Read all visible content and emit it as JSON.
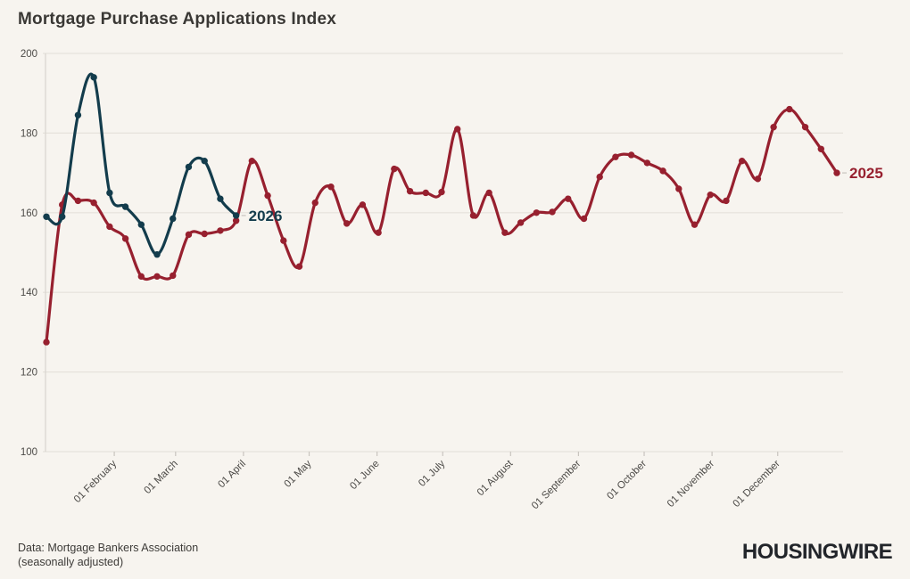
{
  "title": "Mortgage Purchase Applications Index",
  "footer": {
    "line1": "Data: Mortgage Bankers Association",
    "line2": "(seasonally adjusted)",
    "logo": "HOUSINGWIRE"
  },
  "colors": {
    "background": "#f7f4ef",
    "gridline": "#e6e2dc",
    "axis": "#d8d4ce",
    "tick": "#c9c5bf",
    "tick_text": "#4c4a47",
    "series_2025": "#97202f",
    "series_2026": "#133c4c"
  },
  "chart_data": {
    "type": "line",
    "title": "Mortgage Purchase Applications Index",
    "xlabel": "",
    "ylabel": "",
    "ylim": [
      100,
      200
    ],
    "yticks": [
      100,
      120,
      140,
      160,
      180,
      200
    ],
    "grid": "horizontal",
    "legend_position": "line-end-labels",
    "total_days_span": 361,
    "months": [
      {
        "label": "01 February",
        "day": 31
      },
      {
        "label": "01 March",
        "day": 59
      },
      {
        "label": "01 April",
        "day": 90
      },
      {
        "label": "01 May",
        "day": 120
      },
      {
        "label": "01 June",
        "day": 151
      },
      {
        "label": "01 July",
        "day": 181
      },
      {
        "label": "01 August",
        "day": 212
      },
      {
        "label": "01 September",
        "day": 243
      },
      {
        "label": "01 October",
        "day": 273
      },
      {
        "label": "01 November",
        "day": 304
      },
      {
        "label": "01 December",
        "day": 334
      }
    ],
    "series": [
      {
        "name": "2025",
        "color": "#97202f",
        "values": [
          127.5,
          162,
          163,
          162.5,
          156.5,
          153.5,
          144,
          144,
          144.2,
          154.5,
          154.7,
          155.5,
          158,
          173,
          164.3,
          153,
          146.5,
          162.5,
          166.5,
          157.3,
          162,
          155,
          171,
          165.4,
          165,
          165.2,
          181,
          159.3,
          165,
          155,
          157.5,
          160,
          160.2,
          163.5,
          158.5,
          169,
          174,
          174.5,
          172.5,
          170.5,
          166,
          157,
          164.5,
          163,
          173,
          168.5,
          181.5,
          186,
          181.5,
          176,
          170
        ]
      },
      {
        "name": "2026",
        "color": "#133c4c",
        "values": [
          159,
          159,
          184.5,
          194,
          165,
          161.5,
          157,
          149.5,
          158.5,
          171.5,
          173,
          163.5,
          159.3
        ]
      }
    ]
  }
}
